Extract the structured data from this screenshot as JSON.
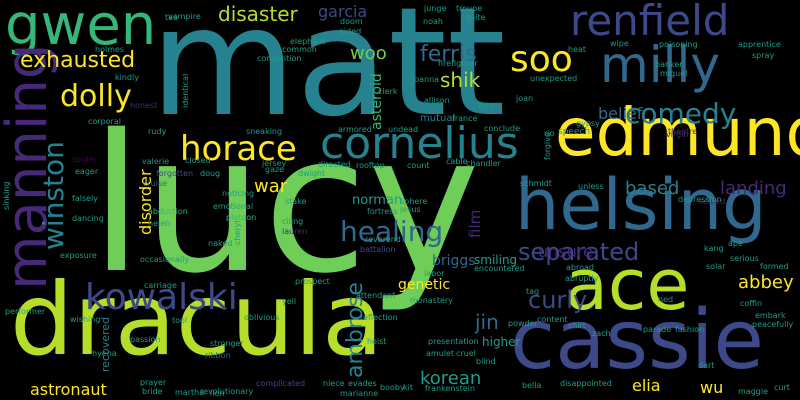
{
  "palette": {
    "yellow": "#fde725",
    "lime": "#b5de2b",
    "green": "#6ece58",
    "teal_green": "#35b779",
    "teal": "#1f9e89",
    "blue_teal": "#26828e",
    "blue": "#31688e",
    "indigo": "#3e4989",
    "purple": "#482878",
    "dark_purple": "#440154"
  },
  "words": [
    "matt",
    "lucy",
    "dracula",
    "cassie",
    "helsing",
    "ace",
    "edmund",
    "milly",
    "gwen",
    "renfield",
    "cornelius",
    "manning",
    "horace",
    "soo",
    "kowalski",
    "dolly",
    "exhausted",
    "comedy",
    "winston",
    "healing",
    "separated",
    "disaster",
    "ferris",
    "shik",
    "curly",
    "abbey",
    "astronaut",
    "korean",
    "ambrose",
    "jin",
    "landing",
    "based",
    "belief",
    "disorder",
    "woo",
    "war",
    "norman",
    "film",
    "genetic",
    "unsure",
    "garcia",
    "asteroid",
    "elia",
    "wu",
    "briggs",
    "smiling",
    "mutual",
    "higher",
    "recovered",
    "spider",
    "cruise",
    "forgotten",
    "honest",
    "abduction",
    "noticing",
    "platoon",
    "lauren",
    "stake",
    "reverend",
    "battalion",
    "sphere",
    "jesus",
    "fortress",
    "sealed",
    "depression",
    "revolutionary",
    "passion",
    "ribbon",
    "stronger",
    "prayer",
    "bride",
    "martha",
    "lion",
    "complicated",
    "niece",
    "evades",
    "marianne",
    "booby",
    "kit",
    "frankenstein",
    "amulet",
    "cruel",
    "blind",
    "presentation",
    "heist",
    "bella",
    "disappointed",
    "dart",
    "maggie",
    "curt",
    "parade",
    "fashion",
    "embark",
    "peacefully",
    "formed",
    "theatre",
    "virgin",
    "banker",
    "miguel",
    "gypsy",
    "speech",
    "conclude",
    "france",
    "tom",
    "joan",
    "allison",
    "joanna",
    "firefighter",
    "clerk",
    "armored",
    "undead",
    "rooftop",
    "directed",
    "count",
    "cable",
    "chandler",
    "schmidt",
    "unless",
    "exposure",
    "occasionally",
    "carriage",
    "performer",
    "wishing",
    "hyena",
    "tool",
    "oblivious",
    "reflection",
    "powder",
    "content",
    "shirt",
    "zach",
    "ned",
    "coffin",
    "vampire",
    "convention",
    "doom",
    "aided",
    "noah",
    "troupe",
    "quite",
    "junge",
    "heat",
    "wipe",
    "poisoning",
    "apprentice",
    "spray",
    "kindly",
    "holmes",
    "tae",
    "elephant",
    "common",
    "unexpected",
    "rio",
    "forgive",
    "corporal",
    "rudy",
    "sneaking",
    "identical",
    "valerie",
    "closed",
    "eager",
    "falsely",
    "dancing",
    "helen",
    "naked",
    "ciling",
    "emotional",
    "doug",
    "dwight",
    "prospect",
    "yeil",
    "attendant",
    "monastery",
    "labor",
    "kang",
    "solar",
    "serious",
    "ape",
    "tag",
    "abroad",
    "abruptly",
    "encountered",
    "sinking",
    "jersey",
    "gaze",
    "cheryl"
  ]
}
